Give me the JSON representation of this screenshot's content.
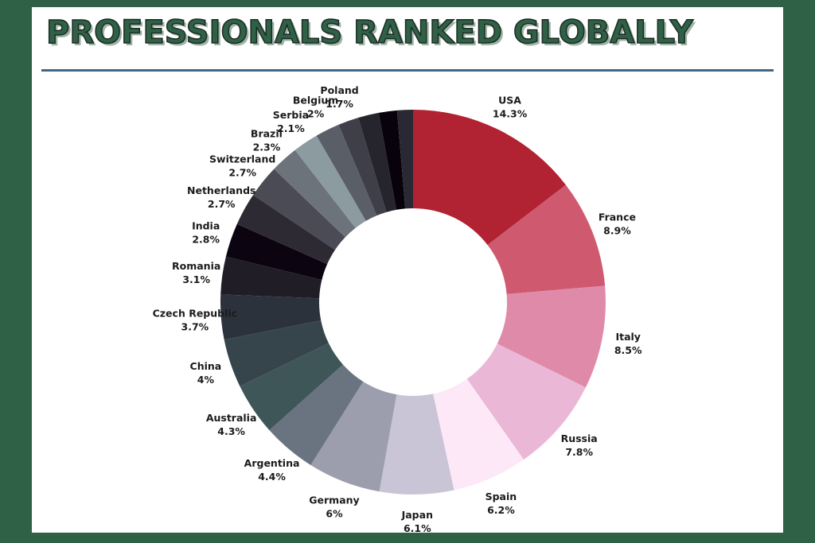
{
  "chart_data": {
    "type": "donut",
    "title": "PROFESSIONALS RANKED GLOBALLY",
    "slices": [
      {
        "label": "USA",
        "value": 14.3,
        "value_label": "14.3%",
        "color": "#b12232"
      },
      {
        "label": "France",
        "value": 8.9,
        "value_label": "8.9%",
        "color": "#cf5a70"
      },
      {
        "label": "Italy",
        "value": 8.5,
        "value_label": "8.5%",
        "color": "#e08aaa"
      },
      {
        "label": "Russia",
        "value": 7.8,
        "value_label": "7.8%",
        "color": "#eab8d6"
      },
      {
        "label": "Spain",
        "value": 6.2,
        "value_label": "6.2%",
        "color": "#fde8f8"
      },
      {
        "label": "Japan",
        "value": 6.1,
        "value_label": "6.1%",
        "color": "#cac5d6"
      },
      {
        "label": "Germany",
        "value": 6,
        "value_label": "6%",
        "color": "#9c9dad"
      },
      {
        "label": "Argentina",
        "value": 4.4,
        "value_label": "4.4%",
        "color": "#6a7480"
      },
      {
        "label": "Australia",
        "value": 4.3,
        "value_label": "4.3%",
        "color": "#3f5659"
      },
      {
        "label": "China",
        "value": 4,
        "value_label": "4%",
        "color": "#36454b"
      },
      {
        "label": "Czech Republic",
        "value": 3.7,
        "value_label": "3.7%",
        "color": "#2b323c"
      },
      {
        "label": "Romania",
        "value": 3.1,
        "value_label": "3.1%",
        "color": "#211d26"
      },
      {
        "label": "India",
        "value": 2.8,
        "value_label": "2.8%",
        "color": "#0c0410"
      },
      {
        "label": "Netherlands",
        "value": 2.7,
        "value_label": "2.7%",
        "color": "#2e2a33"
      },
      {
        "label": "Switzerland",
        "value": 2.7,
        "value_label": "2.7%",
        "color": "#4b4b55"
      },
      {
        "label": "Brazil",
        "value": 2.3,
        "value_label": "2.3%",
        "color": "#6c737b"
      },
      {
        "label": "Serbia",
        "value": 2.1,
        "value_label": "2.1%",
        "color": "#8b9ba0"
      },
      {
        "label": "Belgium",
        "value": 2,
        "value_label": "2%",
        "color": "#5a5e66"
      },
      {
        "label": "Poland",
        "value": 1.7,
        "value_label": "1.7%",
        "color": "#3f3f49"
      },
      {
        "label": "",
        "value": 1.7,
        "value_label": "",
        "color": "#26252d"
      },
      {
        "label": "",
        "value": 1.5,
        "value_label": "",
        "color": "#07020b"
      },
      {
        "label": "",
        "value": 1.3,
        "value_label": "",
        "color": "#2a2833"
      }
    ]
  },
  "colors": {
    "background": "#2f6147",
    "card": "#ffffff",
    "title": "#2f6147",
    "rule": "#3f6888"
  }
}
